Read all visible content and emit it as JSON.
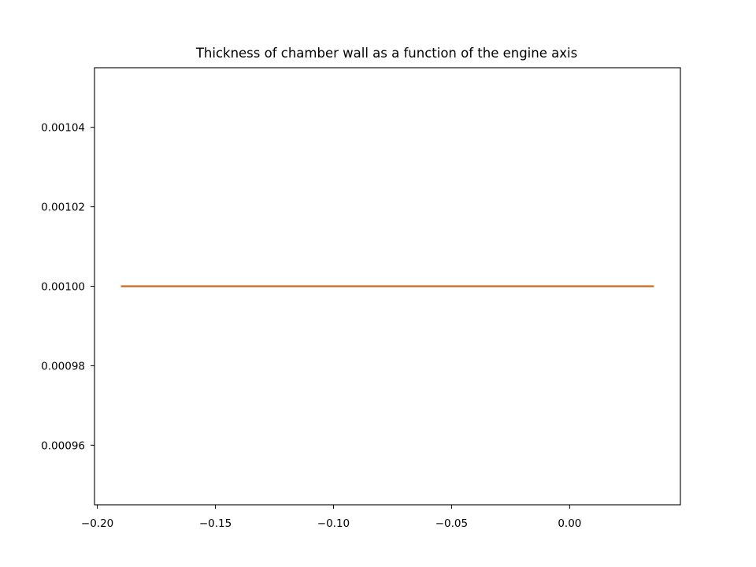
{
  "chart_data": {
    "type": "line",
    "title": "Thickness of chamber wall as a function of the engine axis",
    "xlabel": "",
    "ylabel": "",
    "x_ticks": [
      -0.2,
      -0.15,
      -0.1,
      -0.05,
      0.0
    ],
    "x_tick_labels": [
      "−0.20",
      "−0.15",
      "−0.10",
      "−0.05",
      "0.00"
    ],
    "y_ticks": [
      0.00096,
      0.00098,
      0.001,
      0.00102,
      0.00104
    ],
    "y_tick_labels": [
      "0.00096",
      "0.00098",
      "0.00100",
      "0.00102",
      "0.00104"
    ],
    "xlim": [
      -0.2012,
      0.0469
    ],
    "ylim": [
      0.000945,
      0.001055
    ],
    "grid": false,
    "series": [
      {
        "color": "#d2691e",
        "x": [
          -0.19,
          0.0357
        ],
        "y": [
          0.001,
          0.001
        ]
      }
    ]
  }
}
